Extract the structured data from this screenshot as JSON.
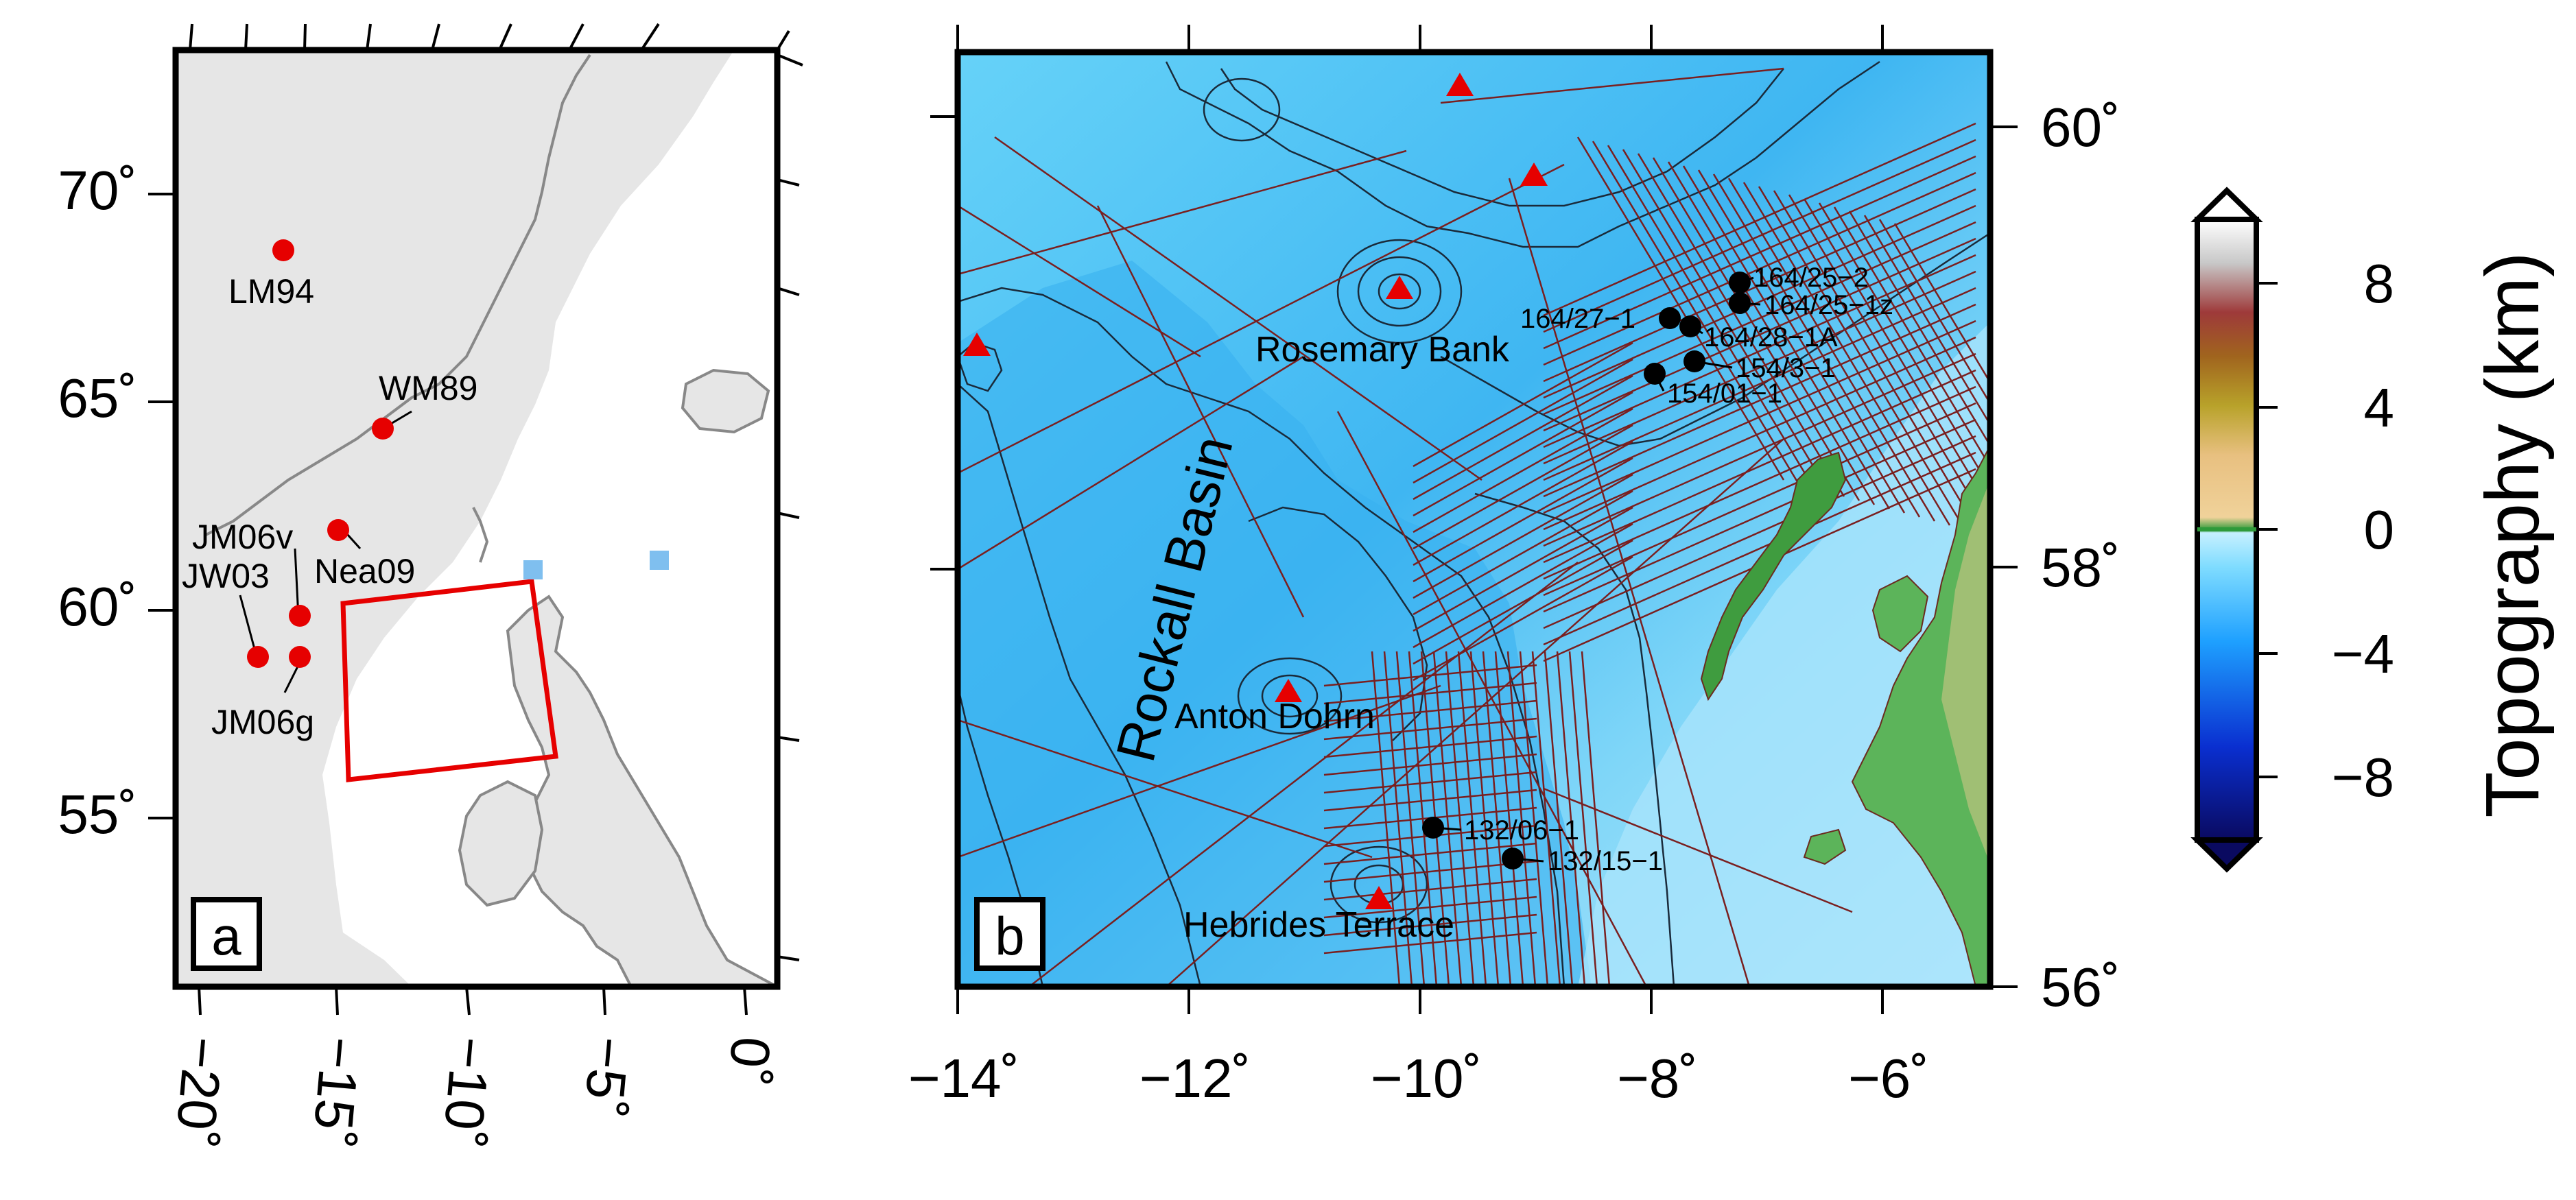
{
  "panel_a": {
    "label": "a",
    "lat_ticks": [
      "70˚",
      "65˚",
      "60˚",
      "55˚"
    ],
    "lon_ticks": [
      "−20˚",
      "−15˚",
      "−10˚",
      "−5˚",
      "0˚"
    ],
    "sites": [
      "LM94",
      "WM89",
      "JM06v",
      "Nea09",
      "JW03",
      "JM06g"
    ]
  },
  "panel_b": {
    "label": "b",
    "lat_ticks": [
      "60˚",
      "58˚",
      "56˚"
    ],
    "lon_ticks": [
      "−14˚",
      "−12˚",
      "−10˚",
      "−8˚",
      "−6˚"
    ],
    "features": [
      "Rockall Basin",
      "Rosemary Bank",
      "Anton Dohrn",
      "Hebrides Terrace"
    ],
    "wells": [
      "164/25−2",
      "164/25−1z",
      "164/27−1",
      "164/28−1A",
      "154/3−1",
      "154/01−1",
      "132/06−1",
      "132/15−1"
    ]
  },
  "colorbar": {
    "title": "Topography (km)",
    "ticks": [
      "8",
      "4",
      "0",
      "−4",
      "−8"
    ],
    "colors": [
      "#0a0a60",
      "#0a2fd0",
      "#1ea0ff",
      "#7fdcff",
      "#c6f0ff",
      "#2f9a3a",
      "#f0d29a",
      "#b8a22a",
      "#a0641e",
      "#9e3a3a",
      "#c8c8c8",
      "#ffffff"
    ]
  },
  "style": {
    "site_color": "#e60000",
    "box_color": "#e60000",
    "square_color": "#7fbfef",
    "well_color": "#000000",
    "volcano_color": "#e60000",
    "track_color": "#7a1f1f"
  }
}
